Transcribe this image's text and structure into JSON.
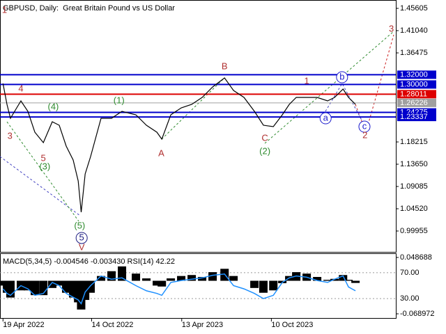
{
  "chart_data": [
    {
      "type": "line",
      "title": "GBPUSD, Daily:  Great Britain Pound vs US Dollar",
      "x": [
        "2022-04-19",
        "2022-04-27",
        "2022-05-04",
        "2022-05-25",
        "2022-06-08",
        "2022-06-22",
        "2022-07-09",
        "2022-07-27",
        "2022-08-10",
        "2022-08-24",
        "2022-09-07",
        "2022-09-17",
        "2022-09-23",
        "2022-10-01",
        "2022-10-12",
        "2022-11-02",
        "2022-11-23",
        "2022-12-14",
        "2023-01-11",
        "2023-02-01",
        "2023-02-22",
        "2023-03-04",
        "2023-03-22",
        "2023-04-12",
        "2023-05-03",
        "2023-05-24",
        "2023-06-14",
        "2023-07-08",
        "2023-07-26",
        "2023-08-16",
        "2023-09-06",
        "2023-09-24",
        "2023-10-14",
        "2023-11-01",
        "2023-11-15",
        "2023-11-29",
        "2023-12-20",
        "2024-01-10",
        "2024-01-31",
        "2024-02-14",
        "2024-03-02",
        "2024-03-13",
        "2024-03-27"
      ],
      "series": [
        {
          "color": "#000000",
          "values": [
            1.302,
            1.2592,
            1.2306,
            1.2663,
            1.2449,
            1.2021,
            1.1807,
            1.2235,
            1.2164,
            1.1736,
            1.1451,
            1.1023,
            1.0381,
            1.1165,
            1.1522,
            1.2306,
            1.2306,
            1.2449,
            1.2378,
            1.2164,
            1.2021,
            1.1879,
            1.2378,
            1.2521,
            1.2592,
            1.2734,
            1.2948,
            1.3134,
            1.2877,
            1.2734,
            1.2449,
            1.2164,
            1.2135,
            1.2378,
            1.2592,
            1.2734,
            1.2734,
            1.2734,
            1.2663,
            1.2734,
            1.2906,
            1.2734,
            1.2592
          ]
        }
      ],
      "xlim": [
        "2022-04-13",
        "2024-06-16"
      ],
      "xticks": [
        {
          "value": "2022-04-19",
          "label": "19 Apr 2022"
        },
        {
          "value": "2022-10-14",
          "label": "14 Oct 2022"
        },
        {
          "value": "2023-04-13",
          "label": "13 Apr 2023"
        },
        {
          "value": "2023-10-10",
          "label": "10 Oct 2023"
        }
      ],
      "ylim": [
        0.95675,
        1.4732
      ],
      "yticks": [
        1.45605,
        {
          "value": 1.4104,
          "label": "1.41040"
        },
        1.36475,
        1.18215,
        {
          "value": 1.1365,
          "label": "1.13650"
        },
        1.09085,
        {
          "value": 1.0452,
          "label": "1.04520"
        },
        0.99955
      ],
      "levels": [
        {
          "value": 1.32,
          "label": "1.32000",
          "color": "#0000cc"
        },
        {
          "value": 1.3,
          "label": "1.30000",
          "color": "#0000cc"
        },
        {
          "value": 1.28011,
          "label": "1.28011",
          "color": "#dd0000"
        },
        {
          "value": 1.26226,
          "label": "1.26226",
          "color": "#a0a0a0"
        },
        {
          "value": 1.24275,
          "label": "1.24275",
          "color": "#0000cc"
        },
        {
          "value": 1.23337,
          "label": "1.23337",
          "color": "#0000cc"
        }
      ],
      "annotations": [
        {
          "text": "1",
          "x": "2022-04-22",
          "y": 1.4518,
          "color": "#b03030"
        },
        {
          "text": "4",
          "x": "2022-05-25",
          "y": 1.2906,
          "color": "#b03030"
        },
        {
          "text": "3",
          "x": "2022-05-03",
          "y": 1.1935,
          "color": "#b03030"
        },
        {
          "text": "5",
          "x": "2022-07-09",
          "y": 1.1479,
          "color": "#b03030"
        },
        {
          "text": "(4)",
          "x": "2022-07-29",
          "y": 1.2535,
          "color": "#2e8b2e"
        },
        {
          "text": "(3)",
          "x": "2022-07-12",
          "y": 1.1308,
          "color": "#2e8b2e"
        },
        {
          "text": "(5)",
          "x": "2022-09-20",
          "y": 1.0095,
          "color": "#2e8b2e"
        },
        {
          "text": "5",
          "x": "2022-09-24",
          "y": 0.9853,
          "color": "#1a1a80",
          "style": "circle"
        },
        {
          "text": "V",
          "x": "2022-09-24",
          "y": 0.9653,
          "color": "#b03030"
        },
        {
          "text": "(1)",
          "x": "2022-12-08",
          "y": 1.2663,
          "color": "#2e8b2e"
        },
        {
          "text": "A",
          "x": "2023-03-03",
          "y": 1.1579,
          "color": "#b03030"
        },
        {
          "text": "B",
          "x": "2023-07-08",
          "y": 1.3362,
          "color": "#b03030"
        },
        {
          "text": "C",
          "x": "2023-09-27",
          "y": 1.1893,
          "color": "#b03030"
        },
        {
          "text": "(2)",
          "x": "2023-09-27",
          "y": 1.1622,
          "color": "#2e8b2e"
        },
        {
          "text": "1",
          "x": "2023-12-20",
          "y": 1.3062,
          "color": "#b03030"
        },
        {
          "text": "b",
          "x": "2024-02-29",
          "y": 1.3148,
          "color": "#1a1acc",
          "style": "circle"
        },
        {
          "text": "a",
          "x": "2024-01-27",
          "y": 1.2306,
          "color": "#1a1acc",
          "style": "circle"
        },
        {
          "text": "c",
          "x": "2024-04-14",
          "y": 1.2135,
          "color": "#1a1acc",
          "style": "circle"
        },
        {
          "text": "2",
          "x": "2024-04-15",
          "y": 1.195,
          "color": "#b03030"
        },
        {
          "text": "3",
          "x": "2024-06-07",
          "y": 1.4133,
          "color": "#b03030"
        }
      ]
    },
    {
      "type": "bar",
      "title": "MACD(5,34,5) -0.004546 -0.003430 RSI(14) 42.22",
      "ylim": [
        0,
        100
      ],
      "yticks": [
        {
          "value": 70,
          "label": "70.00"
        },
        {
          "value": 30,
          "label": "30.00"
        }
      ],
      "y2lim": [
        -0.0777,
        0.0574
      ],
      "y2ticks": [
        0.048688,
        -0.068972
      ],
      "series": [
        {
          "type": "bar",
          "axis": "y2",
          "color": "#000000",
          "values": [
            -0.01,
            -0.025,
            -0.035,
            -0.02,
            -0.02,
            -0.03,
            -0.03,
            -0.015,
            -0.01,
            -0.025,
            -0.035,
            -0.045,
            -0.06,
            -0.04,
            -0.025,
            0.01,
            0.02,
            0.03,
            0.015,
            0.005,
            -0.01,
            -0.012,
            0.005,
            0.01,
            0.012,
            0.008,
            0.018,
            0.025,
            0.01,
            0.0,
            -0.015,
            -0.025,
            -0.02,
            -0.005,
            0.01,
            0.018,
            0.015,
            0.008,
            0.002,
            0.004,
            0.012,
            0.002,
            -0.0045
          ]
        },
        {
          "type": "line",
          "color": "#1e90ff",
          "values": [
            45,
            38,
            35,
            50,
            45,
            35,
            38,
            55,
            50,
            38,
            32,
            28,
            22,
            40,
            50,
            65,
            60,
            62,
            50,
            42,
            38,
            35,
            55,
            58,
            60,
            62,
            66,
            68,
            50,
            45,
            38,
            30,
            35,
            55,
            62,
            65,
            63,
            58,
            55,
            60,
            65,
            48,
            42
          ]
        }
      ]
    }
  ]
}
